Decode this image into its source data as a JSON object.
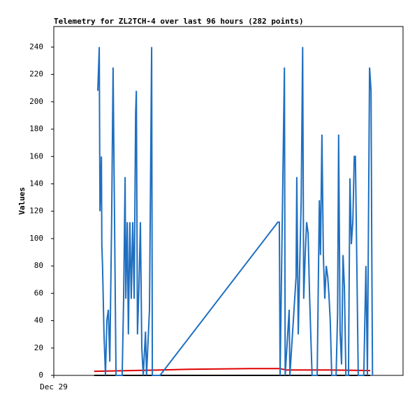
{
  "chart_data": {
    "type": "line",
    "title": "Telemetry for ZL2TCH-4 over last 96 hours (282 points)",
    "y_label": "Values",
    "xlim": [
      0,
      96
    ],
    "xticks": [
      {
        "value": 0,
        "label": "Dec 29"
      }
    ],
    "ylim": [
      0,
      255
    ],
    "yticks": [
      0,
      20,
      40,
      60,
      80,
      100,
      120,
      140,
      160,
      180,
      200,
      220,
      240
    ],
    "series": [
      {
        "color": "#000000",
        "x": [
          11.1,
          87.0
        ],
        "values": [
          0,
          0
        ]
      },
      {
        "color": "#e00000",
        "x": [
          11.1,
          29.4,
          37.1,
          54.3,
          62.0,
          64.0,
          75.5,
          87.0
        ],
        "values": [
          3,
          4,
          4.5,
          5,
          5,
          4,
          4,
          3.5
        ]
      },
      {
        "color": "#1f6fc0",
        "x": [
          12.1,
          12.5,
          12.7,
          13.1,
          13.2,
          13.4,
          13.8,
          14.2,
          14.6,
          15.0,
          15.4,
          15.9,
          16.3,
          16.7,
          17.1,
          18.8,
          19.2,
          19.6,
          19.8,
          20.2,
          20.5,
          20.9,
          21.3,
          21.7,
          22.1,
          22.5,
          22.7,
          23.0,
          23.4,
          23.8,
          24.2,
          24.6,
          25.2,
          25.5,
          26.3,
          26.9,
          27.1,
          29.2,
          61.6,
          62.0,
          62.2,
          63.4,
          63.6,
          64.7,
          64.9,
          66.6,
          66.8,
          67.2,
          67.6,
          68.0,
          68.4,
          68.7,
          69.1,
          69.5,
          69.9,
          70.3,
          70.7,
          71.0,
          72.4,
          73.0,
          73.3,
          73.7,
          74.1,
          74.5,
          74.9,
          75.3,
          75.6,
          76.0,
          76.4,
          77.6,
          78.0,
          78.3,
          78.7,
          79.1,
          79.5,
          79.9,
          80.3,
          81.0,
          81.4,
          81.8,
          82.2,
          82.6,
          82.9,
          83.3,
          83.7,
          84.9,
          85.2,
          85.8,
          86.2,
          86.8,
          87.2,
          87.4,
          87.6
        ],
        "values": [
          208,
          240,
          120,
          160,
          95,
          80,
          30,
          0,
          40,
          48,
          10,
          112,
          225,
          112,
          0,
          0,
          56,
          145,
          56,
          112,
          30,
          112,
          56,
          112,
          56,
          192,
          208,
          30,
          64,
          112,
          20,
          0,
          32,
          0,
          48,
          240,
          0,
          0,
          112,
          112,
          0,
          225,
          0,
          48,
          0,
          72,
          145,
          30,
          80,
          128,
          240,
          56,
          88,
          112,
          104,
          60,
          25,
          0,
          0,
          128,
          88,
          176,
          88,
          56,
          80,
          72,
          60,
          40,
          0,
          0,
          45,
          176,
          32,
          8,
          88,
          64,
          0,
          0,
          144,
          96,
          112,
          160,
          160,
          80,
          0,
          0,
          0,
          80,
          0,
          225,
          208,
          96,
          0
        ]
      }
    ]
  }
}
